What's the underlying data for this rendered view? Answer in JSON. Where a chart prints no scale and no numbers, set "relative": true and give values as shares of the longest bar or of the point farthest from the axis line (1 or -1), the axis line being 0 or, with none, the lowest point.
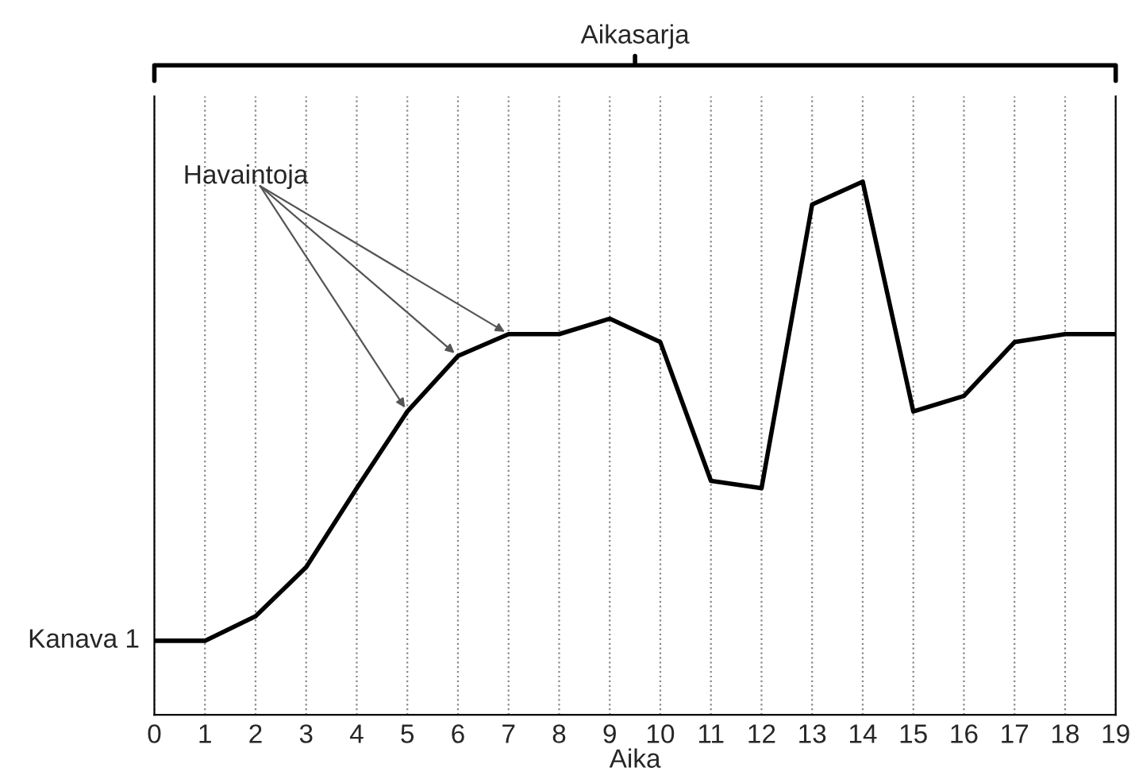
{
  "chart_data": {
    "type": "line",
    "title": "Aikasarja",
    "xlabel": "Aika",
    "relative": true,
    "x": [
      0,
      1,
      2,
      3,
      4,
      5,
      6,
      7,
      8,
      9,
      10,
      11,
      12,
      13,
      14,
      15,
      16,
      17,
      18,
      19
    ],
    "series": [
      {
        "name": "Kanava 1",
        "color": "#000000",
        "values": [
          0.139,
          0.139,
          0.185,
          0.277,
          0.425,
          0.569,
          0.673,
          0.714,
          0.714,
          0.743,
          0.699,
          0.439,
          0.425,
          0.957,
          1,
          0.569,
          0.598,
          0.699,
          0.714,
          0.714
        ]
      }
    ],
    "xlim": [
      0,
      19
    ],
    "xticks": [
      0,
      1,
      2,
      3,
      4,
      5,
      6,
      7,
      8,
      9,
      10,
      11,
      12,
      13,
      14,
      15,
      16,
      17,
      18,
      19
    ],
    "grid": "x",
    "marker": "none",
    "line_style": "solid",
    "annotations": [
      {
        "text": "Havaintoja",
        "x": 6,
        "y": 0.673
      }
    ]
  }
}
